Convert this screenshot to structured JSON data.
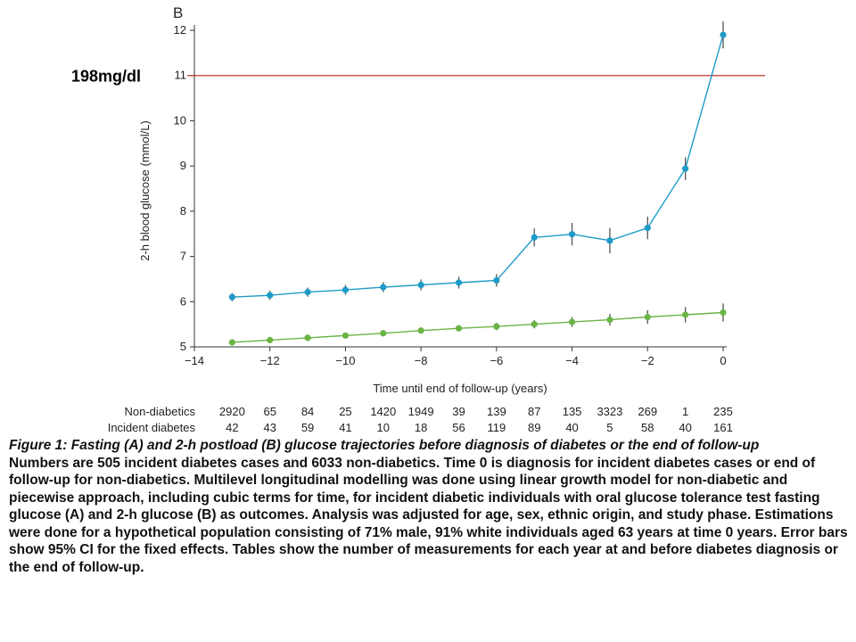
{
  "chart_data": {
    "type": "line",
    "panel_label": "B",
    "ylabel": "2-h blood glucose (mmol/L)",
    "xlabel": "Time until end of follow-up (years)",
    "xlim": [
      -14,
      0
    ],
    "ylim": [
      5,
      12
    ],
    "x_ticks": [
      -14,
      -12,
      -10,
      -8,
      -6,
      -4,
      -2,
      0
    ],
    "x_tick_labels": [
      "−14",
      "−12",
      "−10",
      "−8",
      "−6",
      "−4",
      "−2",
      "0"
    ],
    "y_ticks": [
      5,
      6,
      7,
      8,
      9,
      10,
      11,
      12
    ],
    "y_tick_labels": [
      "5",
      "6",
      "7",
      "8",
      "9",
      "10",
      "11",
      "12"
    ],
    "x": [
      -13,
      -12,
      -11,
      -10,
      -9,
      -8,
      -7,
      -6,
      -5,
      -4,
      -3,
      -2,
      -1,
      0
    ],
    "series": [
      {
        "color": "#1e9bc8",
        "values": [
          6.1,
          6.14,
          6.21,
          6.26,
          6.32,
          6.37,
          6.42,
          6.47,
          7.42,
          7.49,
          7.35,
          7.63,
          8.94,
          11.9
        ],
        "err": [
          0.09,
          0.1,
          0.1,
          0.11,
          0.11,
          0.12,
          0.13,
          0.14,
          0.2,
          0.25,
          0.28,
          0.25,
          0.25,
          0.3
        ]
      },
      {
        "color": "#6ab446",
        "values": [
          5.1,
          5.15,
          5.2,
          5.25,
          5.3,
          5.36,
          5.41,
          5.45,
          5.5,
          5.55,
          5.6,
          5.66,
          5.71,
          5.76
        ],
        "err": [
          0.02,
          0.03,
          0.03,
          0.04,
          0.05,
          0.06,
          0.07,
          0.08,
          0.09,
          0.11,
          0.13,
          0.15,
          0.17,
          0.2
        ]
      }
    ],
    "reference_line": {
      "y": 11,
      "color": "#c0392b",
      "label": "198mg/dl"
    },
    "table": {
      "rows": [
        {
          "label": "Non-diabetics",
          "values": [
            "2920",
            "65",
            "84",
            "25",
            "1420",
            "1949",
            "39",
            "139",
            "87",
            "135",
            "3323",
            "269",
            "1",
            "235"
          ]
        },
        {
          "label": "Incident diabetes",
          "values": [
            "42",
            "43",
            "59",
            "41",
            "10",
            "18",
            "56",
            "119",
            "89",
            "40",
            "5",
            "58",
            "40",
            "161"
          ]
        }
      ]
    }
  },
  "caption": {
    "title": "Figure 1: Fasting (A) and 2-h postload (B) glucose trajectories before diagnosis of diabetes or the end of follow-up",
    "body": "Numbers are 505 incident diabetes cases and 6033 non-diabetics. Time 0 is diagnosis for incident diabetes cases or end of follow-up for non-diabetics. Multilevel longitudinal modelling was done using linear growth model for non-diabetic and piecewise approach, including cubic terms for time, for incident diabetic individuals with oral glucose tolerance test fasting glucose (A) and 2-h glucose (B) as outcomes. Analysis was adjusted for age, sex, ethnic origin, and study phase. Estimations were done for a hypothetical population consisting of 71% male, 91% white individuals aged 63 years at time 0 years. Error bars show 95% CI for the fixed effects. Tables show the number of measurements for each year at and before diabetes diagnosis or the end of follow-up."
  }
}
